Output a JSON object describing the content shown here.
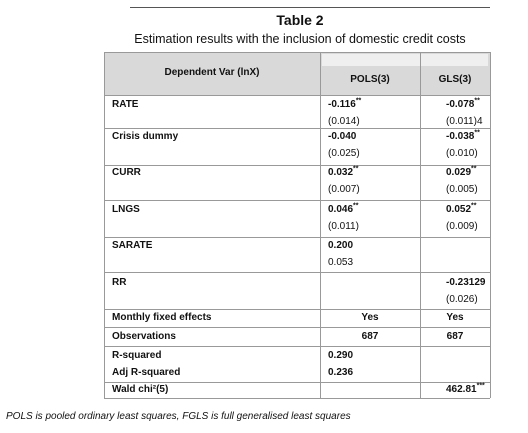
{
  "header": {
    "title": "Table 2",
    "subtitle": "Estimation results with the inclusion of domestic credit costs"
  },
  "table": {
    "columns": [
      "Dependent Var (lnX)",
      "POLS(3)",
      "GLS(3)"
    ],
    "rows": [
      {
        "label": "RATE",
        "pols": [
          {
            "main": "-0.116",
            "sup": "**"
          },
          {
            "main": "(0.014)"
          }
        ],
        "gls": [
          {
            "main": "-0.078",
            "sup": "**"
          },
          {
            "main": "(0.011)4"
          }
        ]
      },
      {
        "label": "Crisis dummy",
        "pols": [
          {
            "main": "-0.040"
          },
          {
            "main": "(0.025)"
          }
        ],
        "gls": [
          {
            "main": "-0.038",
            "sup": "**"
          },
          {
            "main": "(0.010)"
          }
        ]
      },
      {
        "label": "CURR",
        "pols": [
          {
            "main": "0.032",
            "sup": "**"
          },
          {
            "main": "(0.007)"
          }
        ],
        "gls": [
          {
            "main": "0.029",
            "sup": "**"
          },
          {
            "main": "(0.005)"
          }
        ]
      },
      {
        "label": "LNGS",
        "pols": [
          {
            "main": "0.046",
            "sup": "**"
          },
          {
            "main": "(0.011)"
          }
        ],
        "gls": [
          {
            "main": "0.052",
            "sup": "**"
          },
          {
            "main": "(0.009)"
          }
        ]
      },
      {
        "label": "SARATE",
        "pols": [
          {
            "main": "0.200"
          },
          {
            "main": "0.053"
          }
        ],
        "gls": []
      },
      {
        "label": "RR",
        "pols": [],
        "gls": [
          {
            "main": "-0.23129"
          },
          {
            "main": "(0.026)"
          }
        ]
      },
      {
        "label": "Monthly fixed effects",
        "pols": [
          {
            "main": "Yes"
          }
        ],
        "gls": [
          {
            "main": "Yes"
          }
        ]
      },
      {
        "label": "Observations",
        "pols": [
          {
            "main": "687"
          }
        ],
        "gls": [
          {
            "main": "687"
          }
        ]
      },
      {
        "label": "R-squared",
        "pols": [
          {
            "main": "0.290"
          }
        ],
        "gls": []
      },
      {
        "label": "Adj R-squared",
        "pols": [
          {
            "main": "0.236"
          }
        ],
        "gls": []
      },
      {
        "label": "Wald chi²(5)",
        "pols": [],
        "gls": [
          {
            "main": "462.81",
            "sup": "***"
          }
        ]
      }
    ]
  },
  "footnote": "POLS is pooled ordinary least squares, FGLS is full generalised least squares"
}
